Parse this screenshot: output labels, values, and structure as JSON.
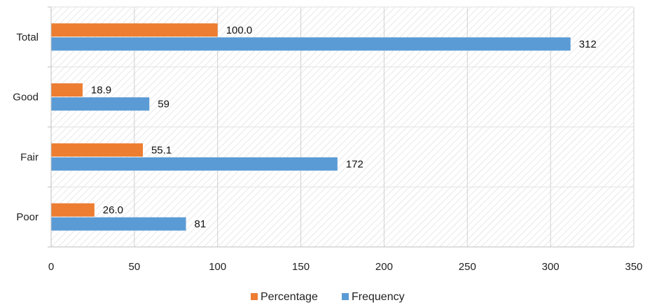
{
  "chart_data": {
    "type": "bar",
    "orientation": "horizontal",
    "categories": [
      "Total",
      "Good",
      "Fair",
      "Poor"
    ],
    "series": [
      {
        "name": "Percentage",
        "color": "#ED7D31",
        "values": [
          100.0,
          18.9,
          55.1,
          26.0
        ],
        "labels": [
          "100.0",
          "18.9",
          "55.1",
          "26.0"
        ]
      },
      {
        "name": "Frequency",
        "color": "#5B9BD5",
        "values": [
          312,
          59,
          172,
          81
        ],
        "labels": [
          "312",
          "59",
          "172",
          "81"
        ]
      }
    ],
    "xlim": [
      0,
      350
    ],
    "xticks": [
      0,
      50,
      100,
      150,
      200,
      250,
      300,
      350
    ],
    "xtick_labels": [
      "0",
      "50",
      "100",
      "150",
      "200",
      "250",
      "300",
      "350"
    ],
    "title": "",
    "xlabel": "",
    "ylabel": "",
    "grid": true,
    "plot_background": "diagonal hatch",
    "legend_position": "bottom"
  }
}
